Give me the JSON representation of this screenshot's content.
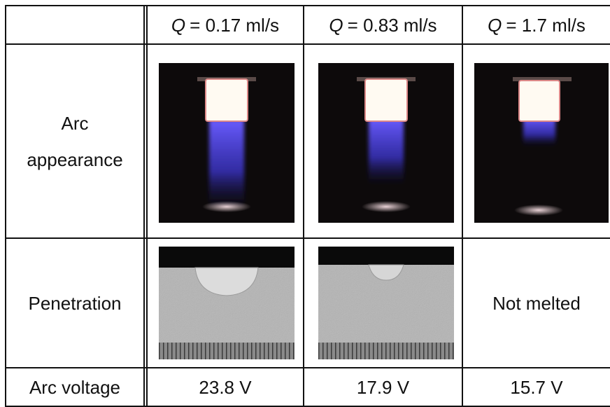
{
  "header": {
    "columns": [
      {
        "symbol": "Q",
        "text": "= 0.17 ml/s"
      },
      {
        "symbol": "Q",
        "text": "= 0.83 ml/s"
      },
      {
        "symbol": "Q",
        "text": "= 1.7 ml/s"
      }
    ]
  },
  "rows": [
    {
      "label": "Arc appearance"
    },
    {
      "label": "Penetration",
      "note": "Not melted"
    },
    {
      "label": "Arc voltage",
      "cells": [
        "23.8 V",
        "17.9 V",
        "15.7 V"
      ]
    }
  ]
}
